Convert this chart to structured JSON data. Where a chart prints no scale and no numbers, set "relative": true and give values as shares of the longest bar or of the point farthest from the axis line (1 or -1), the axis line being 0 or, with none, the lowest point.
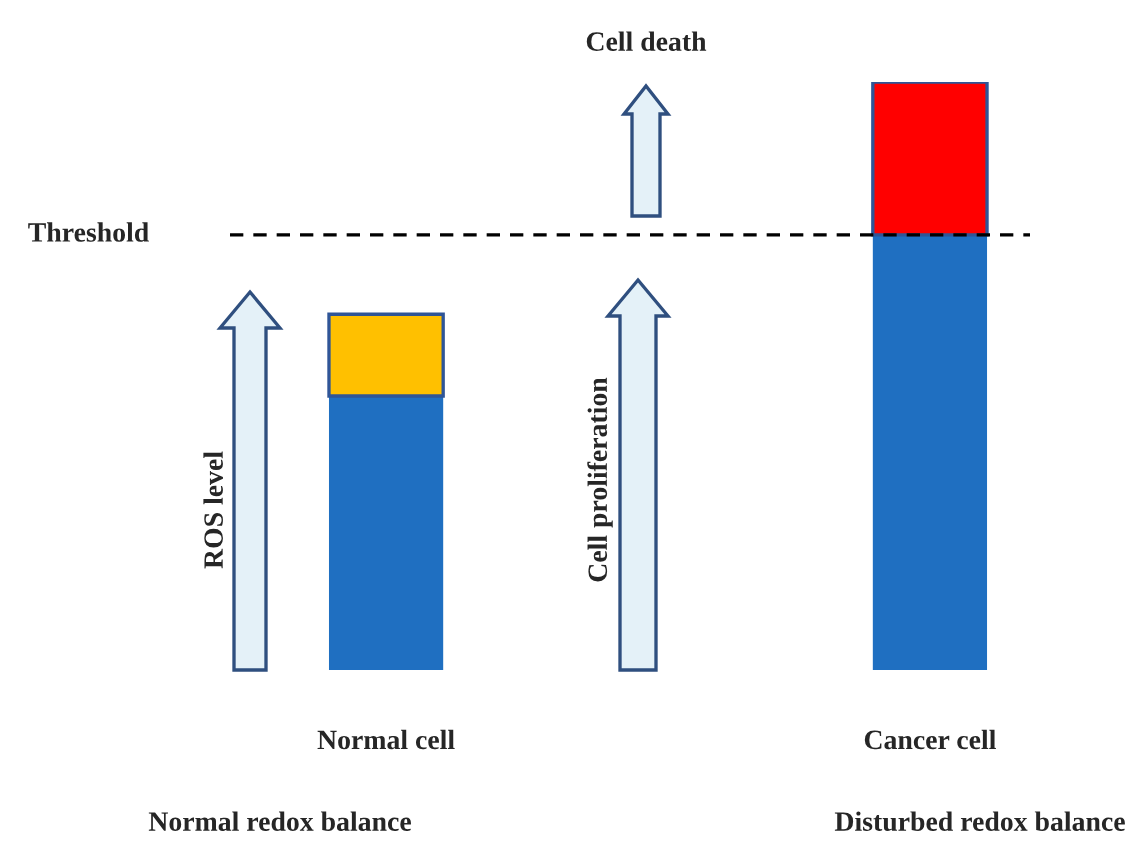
{
  "chart_data": {
    "type": "bar",
    "stacked": true,
    "relative": true,
    "categories": [
      "Normal cell",
      "Cancer cell"
    ],
    "series": [
      {
        "color": "#1f6fc1",
        "values": [
          0.466,
          0.74
        ]
      },
      {
        "colors": [
          "#ffc000",
          "#ff0000"
        ],
        "values": [
          0.139,
          0.26
        ]
      }
    ],
    "ref_lines": [
      {
        "axis": "y",
        "value": 0.74,
        "label": "Threshold",
        "color": "#000000",
        "line_style": "dashed"
      }
    ],
    "annotations": [
      "Cell death",
      "ROS level",
      "Cell proliferation",
      "Normal redox balance",
      "Disturbed redox balance"
    ],
    "grid": false,
    "legend": false
  }
}
